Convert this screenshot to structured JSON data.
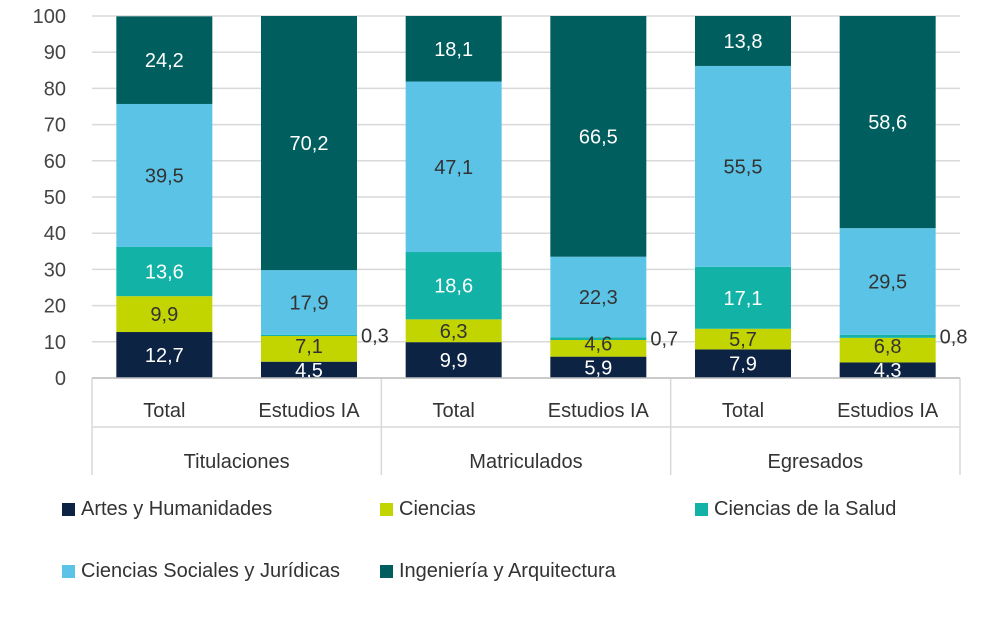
{
  "chart_data": {
    "type": "stacked-bar",
    "ylim": [
      0,
      100
    ],
    "yticks": [
      0,
      10,
      20,
      30,
      40,
      50,
      60,
      70,
      80,
      90,
      100
    ],
    "grid": true,
    "legend_position": "bottom",
    "groups": [
      {
        "label": "Titulaciones",
        "categories": [
          "Total",
          "Estudios IA"
        ]
      },
      {
        "label": "Matriculados",
        "categories": [
          "Total",
          "Estudios IA"
        ]
      },
      {
        "label": "Egresados",
        "categories": [
          "Total",
          "Estudios IA"
        ]
      }
    ],
    "series": [
      {
        "name": "Artes y Humanidades",
        "color": "#0c2343",
        "label_color": "#ffffff",
        "values": [
          12.7,
          4.5,
          9.9,
          5.9,
          7.9,
          4.3
        ],
        "labels": [
          "12,7",
          "4,5",
          "9,9",
          "5,9",
          "7,9",
          "4,3"
        ]
      },
      {
        "name": "Ciencias",
        "color": "#c2d500",
        "label_color": "#333333",
        "values": [
          9.9,
          7.1,
          6.3,
          4.6,
          5.7,
          6.8
        ],
        "labels": [
          "9,9",
          "7,1",
          "6,3",
          "4,6",
          "5,7",
          "6,8"
        ]
      },
      {
        "name": "Ciencias de la Salud",
        "color": "#12b2a6",
        "label_color": "#ffffff",
        "values": [
          13.6,
          0.3,
          18.6,
          0.7,
          17.1,
          0.8
        ],
        "labels": [
          "13,6",
          "0,3",
          "18,6",
          "0,7",
          "17,1",
          "0,8"
        ]
      },
      {
        "name": "Ciencias Sociales y Jurídicas",
        "color": "#5bc4e6",
        "label_color": "#333333",
        "values": [
          39.5,
          17.9,
          47.1,
          22.3,
          55.5,
          29.5
        ],
        "labels": [
          "39,5",
          "17,9",
          "47,1",
          "22,3",
          "55,5",
          "29,5"
        ]
      },
      {
        "name": "Ingeniería y Arquitectura",
        "color": "#005f5e",
        "label_color": "#ffffff",
        "values": [
          24.2,
          70.2,
          18.1,
          66.5,
          13.8,
          58.6
        ],
        "labels": [
          "24,2",
          "70,2",
          "18,1",
          "66,5",
          "13,8",
          "58,6"
        ]
      }
    ]
  }
}
